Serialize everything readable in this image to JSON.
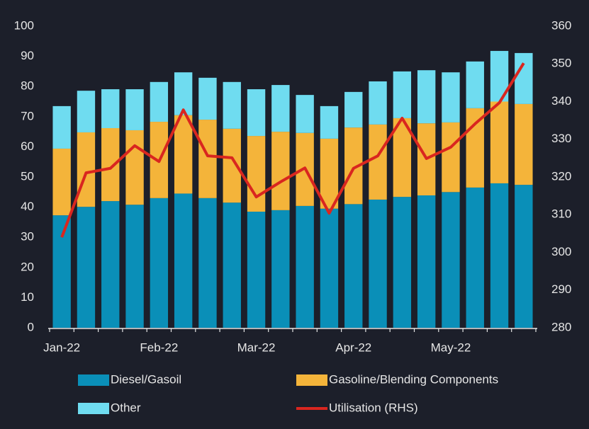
{
  "chart_data": {
    "type": "bar",
    "stacked": true,
    "categories": [
      "Jan-22",
      null,
      null,
      null,
      "Feb-22",
      null,
      null,
      null,
      "Mar-22",
      null,
      null,
      null,
      "Apr-22",
      null,
      null,
      null,
      "May-22",
      null,
      null,
      null
    ],
    "series": [
      {
        "name": "Diesel/Gasoil",
        "color": "#0a8fb8",
        "values": [
          37.3,
          40.1,
          42.0,
          40.8,
          43.0,
          44.5,
          43.0,
          41.5,
          38.5,
          39.0,
          40.4,
          39.5,
          41.0,
          42.5,
          43.4,
          43.9,
          45.0,
          46.5,
          47.9,
          47.4
        ]
      },
      {
        "name": "Gasoline/Blending Components",
        "color": "#f4b43a",
        "values": [
          22.1,
          24.7,
          24.2,
          24.7,
          25.3,
          26.0,
          26.0,
          24.5,
          25.1,
          26.0,
          24.2,
          23.2,
          25.4,
          24.9,
          26.1,
          23.9,
          23.1,
          26.3,
          27.1,
          26.8
        ]
      },
      {
        "name": "Other",
        "color": "#6fdcf0",
        "values": [
          14.1,
          13.8,
          12.9,
          13.6,
          13.2,
          14.2,
          13.9,
          15.5,
          15.5,
          15.5,
          12.6,
          10.8,
          11.8,
          14.3,
          15.5,
          17.6,
          16.6,
          15.5,
          16.8,
          16.9
        ]
      },
      {
        "name": "Utilisation (RHS)",
        "type": "line",
        "axis": "y2",
        "color": "#d9261f",
        "values": [
          304.0,
          321.1,
          322.3,
          328.3,
          324.1,
          337.8,
          325.6,
          325.1,
          314.7,
          318.7,
          322.4,
          310.4,
          322.3,
          325.6,
          335.6,
          324.9,
          327.9,
          334.1,
          339.7,
          350.2
        ]
      }
    ],
    "ylim": [
      0,
      100
    ],
    "yticks": [
      0,
      10,
      20,
      30,
      40,
      50,
      60,
      70,
      80,
      90,
      100
    ],
    "y2lim": [
      280,
      360
    ],
    "y2ticks": [
      280,
      290,
      300,
      310,
      320,
      330,
      340,
      350,
      360
    ],
    "grid": false,
    "legend": "bottom"
  }
}
